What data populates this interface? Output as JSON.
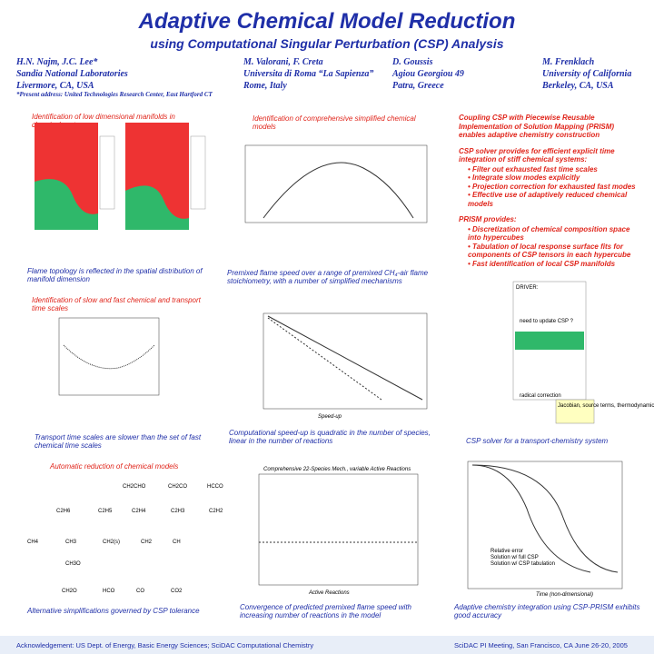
{
  "header": {
    "title": "Adaptive Chemical Model Reduction",
    "subtitle": "using Computational Singular Perturbation (CSP) Analysis"
  },
  "authors": [
    {
      "lines": [
        "H.N. Najm, J.C. Lee*",
        "Sandia National Laboratories",
        "Livermore, CA, USA"
      ]
    },
    {
      "lines": [
        "M. Valorani, F. Creta",
        "Universita di Roma “La Sapienza”",
        "Rome, Italy"
      ]
    },
    {
      "lines": [
        "D. Goussis",
        "Agiou Georgiou 49",
        "Patra, Greece"
      ]
    },
    {
      "lines": [
        "M. Frenklach",
        "University of California",
        "Berkeley, CA, USA"
      ]
    }
  ],
  "note": "*Present address: United Technologies Research Center, East Hartford CT",
  "panels": [
    {
      "top": "Identification of low dimensional manifolds in chemical systems",
      "bottom": "Flame topology is reflected in the spatial distribution of manifold dimension"
    },
    {
      "top": "Identification of slow and fast chemical and transport time scales",
      "bottom": "Transport time scales are slower than the set of fast chemical time scales"
    },
    {
      "top": "Automatic reduction of chemical models",
      "bottom": "Alternative simplifications governed by CSP tolerance"
    },
    {
      "top": "Identification of comprehensive simplified chemical models",
      "bottom": "Premixed flame speed over a range of premixed CH₄-air flame stoichiometry, with a number of simplified mechanisms"
    },
    {
      "bottom": "Computational speed-up is quadratic in the number of species, linear in the number of reactions"
    },
    {
      "bottom": "Convergence of predicted premixed flame speed with increasing number of reactions in the model"
    },
    {
      "bottom": "CSP solver for a transport-chemistry system"
    },
    {
      "bottom": "Adaptive chemistry integration using CSP-PRISM exhibits good accuracy"
    }
  ],
  "right_text": {
    "intro": "Coupling CSP with Piecewise Reusable Implementation of Solution Mapping (PRISM) enables adaptive chemistry construction",
    "csp_head": "CSP solver provides for efficient explicit time integration of stiff chemical systems:",
    "csp_items": [
      "Filter out exhausted fast time scales",
      "Integrate slow modes explicitly",
      "Projection correction for exhausted fast modes",
      "Effective use of adaptively reduced chemical models"
    ],
    "prism_head": "PRISM provides:",
    "prism_items": [
      "Discretization of chemical composition space into hypercubes",
      "Tabulation of local response surface fits for components of CSP tensors in each hypercube",
      "Fast identification of local CSP manifolds"
    ]
  },
  "figures": {
    "network": [
      "CH2CHO",
      "CH2CO",
      "HCCO",
      "C2H6",
      "C2H5",
      "C2H4",
      "C2H3",
      "C2H2",
      "CH4",
      "CH3",
      "CH2(s)",
      "CH2",
      "CH",
      "CH3O",
      "CH2O",
      "HCO",
      "CO",
      "CO2"
    ],
    "flow": [
      "DRIVER:",
      "need to update CSP ?",
      "radical correction",
      "Jacobian, source terms, thermodynamic properties"
    ],
    "conv_title": "Comprehensive 22-Species Mech., variable Active Reactions",
    "conv_x": "Active Reactions",
    "speed_x": "Speed-up",
    "adapt_x": "Time (non-dimensional)",
    "adapt_legend": [
      "Relative error",
      "Solution w/ full CSP",
      "Solution w/ CSP tabulation"
    ]
  },
  "footer": {
    "left": "Acknowledgement: US Dept. of Energy, Basic Energy Sciences; SciDAC Computational Chemistry",
    "right": "SciDAC PI Meeting, San Francisco, CA  June  26-20, 2005"
  }
}
